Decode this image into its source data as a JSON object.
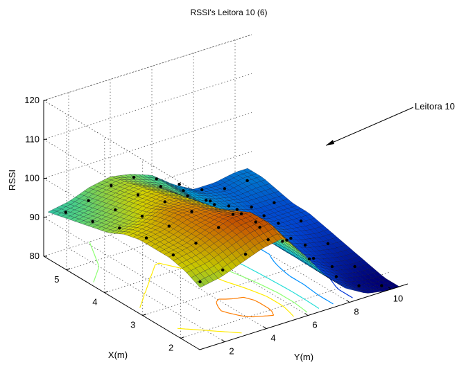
{
  "chart_data": {
    "type": "surface",
    "title": "RSSI's Leitora 10 (6)",
    "xlabel": "X(m)",
    "ylabel": "Y(m)",
    "zlabel": "RSSI",
    "x_ticks": [
      "2",
      "3",
      "4",
      "5"
    ],
    "y_ticks": [
      "2",
      "4",
      "6",
      "8",
      "10"
    ],
    "z_ticks": [
      "80",
      "90",
      "100",
      "110",
      "120"
    ],
    "xlim": [
      1.5,
      5.6
    ],
    "ylim": [
      0.8,
      10.8
    ],
    "zlim": [
      80,
      120
    ],
    "annotation": "Leitora 10",
    "colormap": [
      "#00008f",
      "#0050ff",
      "#00c8ff",
      "#60ff9f",
      "#ffff00",
      "#ff8000",
      "#c00000",
      "#800000"
    ],
    "grid": true,
    "surface": {
      "x": [
        1.6,
        2.0,
        2.4,
        2.8,
        3.2,
        3.6,
        4.0,
        4.4,
        4.8,
        5.2,
        5.6
      ],
      "y": [
        1,
        2,
        3,
        4,
        5,
        6,
        7,
        8,
        9,
        10,
        10.6
      ],
      "z": [
        [
          95,
          97,
          98,
          98,
          98,
          97,
          95,
          94,
          93,
          92,
          91
        ],
        [
          96,
          98,
          99,
          99,
          99,
          98,
          96,
          95,
          94,
          93,
          92
        ],
        [
          98,
          100,
          101,
          101,
          101,
          100,
          98,
          97,
          96,
          95,
          94
        ],
        [
          100,
          102,
          103,
          102,
          101,
          100,
          99,
          98,
          97,
          96,
          95
        ],
        [
          101,
          103,
          103,
          101,
          99,
          98,
          97,
          96,
          95,
          94,
          94
        ],
        [
          95,
          96,
          96,
          95,
          94,
          93,
          93,
          92,
          92,
          92,
          92
        ],
        [
          88,
          88,
          88,
          88,
          88,
          88,
          88,
          88,
          88,
          88,
          88
        ],
        [
          83,
          83,
          84,
          84,
          85,
          86,
          86,
          86,
          86,
          86,
          85
        ],
        [
          80,
          80,
          81,
          82,
          83,
          84,
          84,
          84,
          85,
          85,
          85
        ],
        [
          79,
          79,
          80,
          81,
          82,
          83,
          84,
          84,
          85,
          86,
          86
        ],
        [
          79,
          79,
          80,
          81,
          82,
          83,
          84,
          84,
          85,
          86,
          86
        ]
      ]
    }
  }
}
